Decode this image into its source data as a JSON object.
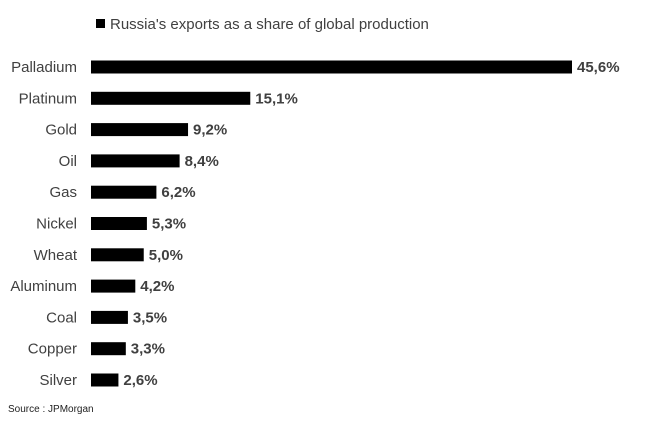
{
  "chart_data": {
    "type": "bar",
    "orientation": "horizontal",
    "categories": [
      "Palladium",
      "Platinum",
      "Gold",
      "Oil",
      "Gas",
      "Nickel",
      "Wheat",
      "Aluminum",
      "Coal",
      "Copper",
      "Silver"
    ],
    "series": [
      {
        "name": "Russia's exports as a share of global production",
        "values": [
          45.6,
          15.1,
          9.2,
          8.4,
          6.2,
          5.3,
          5.0,
          4.2,
          3.5,
          3.3,
          2.6
        ],
        "value_labels": [
          "45,6%",
          "15,1%",
          "9,2%",
          "8,4%",
          "6,2%",
          "5,3%",
          "5,0%",
          "4,2%",
          "3,5%",
          "3,3%",
          "2,6%"
        ],
        "color": "#000000"
      }
    ],
    "xlim": [
      0,
      45.6
    ],
    "grid": false,
    "legend_position": "top",
    "title": "",
    "xlabel": "",
    "ylabel": ""
  },
  "source": "Source : JPMorgan",
  "colors": {
    "bar": "#000000",
    "text": "#404040"
  }
}
